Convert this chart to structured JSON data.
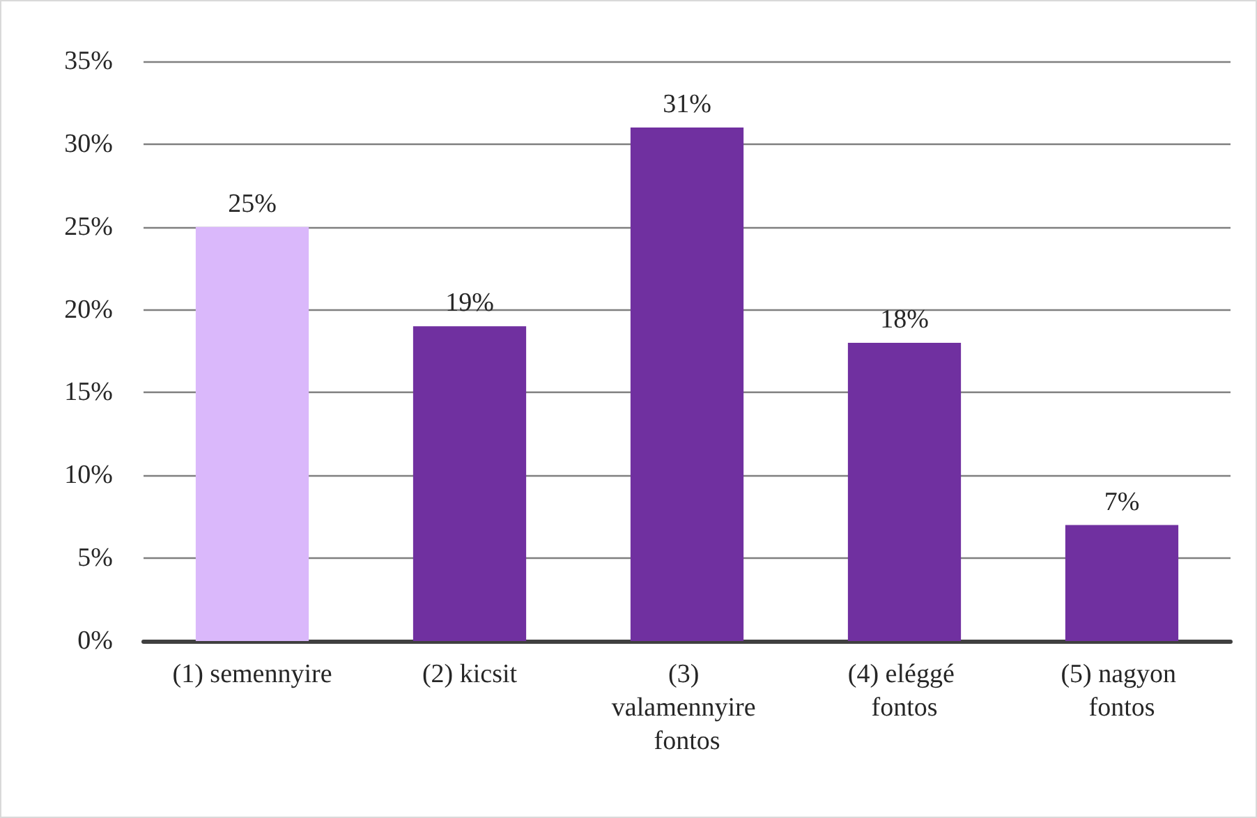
{
  "chart_data": {
    "type": "bar",
    "categories": [
      "(1) semennyire",
      "(2) kicsit",
      "(3) valamennyire fontos",
      "(4) eléggé fontos",
      "(5) nagyon fontos"
    ],
    "values": [
      25,
      19,
      31,
      18,
      7
    ],
    "colors": [
      "#dab8fb",
      "#7030a0",
      "#7030a0",
      "#7030a0",
      "#7030a0"
    ],
    "value_labels": [
      "25%",
      "19%",
      "31%",
      "18%",
      "7%"
    ],
    "ylim": [
      0,
      35
    ],
    "yticks": [
      {
        "value": 0,
        "label": "0%"
      },
      {
        "value": 5,
        "label": "5%"
      },
      {
        "value": 10,
        "label": "10%"
      },
      {
        "value": 15,
        "label": "15%"
      },
      {
        "value": 20,
        "label": "20%"
      },
      {
        "value": 25,
        "label": "25%"
      },
      {
        "value": 30,
        "label": "30%"
      },
      {
        "value": 35,
        "label": "35%"
      }
    ],
    "grid": "y"
  }
}
